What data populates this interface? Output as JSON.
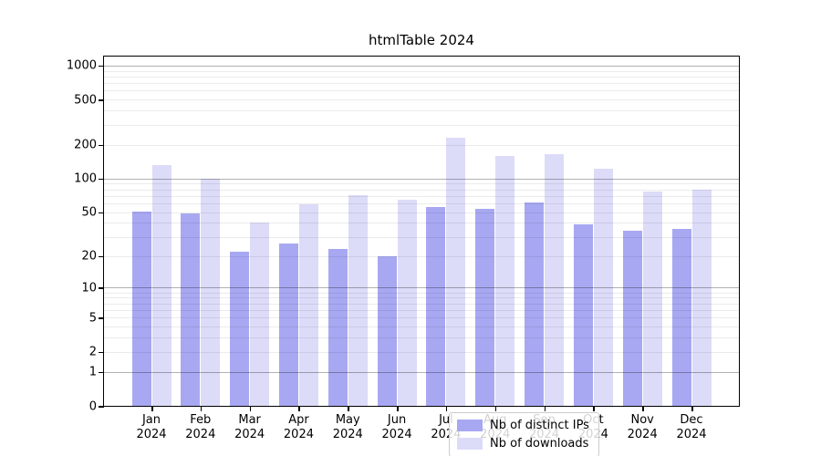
{
  "title": "htmlTable 2024",
  "legend": {
    "items": [
      {
        "label": "Nb of distinct IPs",
        "color": "#a8a8f2"
      },
      {
        "label": "Nb of downloads",
        "color": "#dcdcf8"
      }
    ]
  },
  "chart_data": {
    "type": "bar",
    "title": "htmlTable 2024",
    "categories": [
      "Jan 2024",
      "Feb 2024",
      "Mar 2024",
      "Apr 2024",
      "May 2024",
      "Jun 2024",
      "Jul 2024",
      "Aug 2024",
      "Sep 2024",
      "Oct 2024",
      "Nov 2024",
      "Dec 2024"
    ],
    "x_tick_top_labels": [
      "Jan",
      "Feb",
      "Mar",
      "Apr",
      "May",
      "Jun",
      "Jul",
      "Aug",
      "Sep",
      "Oct",
      "Nov",
      "Dec"
    ],
    "x_tick_bottom_label": "2024",
    "series": [
      {
        "name": "Nb of distinct IPs",
        "color": "#a8a8f2",
        "values": [
          51,
          49,
          22,
          26,
          23,
          20,
          56,
          54,
          61,
          39,
          34,
          35
        ]
      },
      {
        "name": "Nb of downloads",
        "color": "#dcdcf8",
        "values": [
          132,
          100,
          40,
          59,
          71,
          65,
          232,
          158,
          165,
          123,
          76,
          80
        ]
      }
    ],
    "xlabel": "",
    "ylabel": "",
    "y_scale": "log10(1+x)",
    "y_ticks_labeled": [
      0,
      1,
      2,
      5,
      10,
      20,
      50,
      100,
      200,
      500,
      1000
    ],
    "y_gridlines_major": [
      1,
      10,
      100,
      1000
    ],
    "y_gridlines_minor": [
      2,
      3,
      4,
      5,
      6,
      7,
      8,
      9,
      20,
      30,
      40,
      50,
      60,
      70,
      80,
      90,
      200,
      300,
      400,
      500,
      600,
      700,
      800,
      900
    ],
    "ylim": [
      0,
      1200
    ],
    "grid": "on, drawn over bars",
    "legend_position": "lower center",
    "background_color": "#ffffff"
  }
}
